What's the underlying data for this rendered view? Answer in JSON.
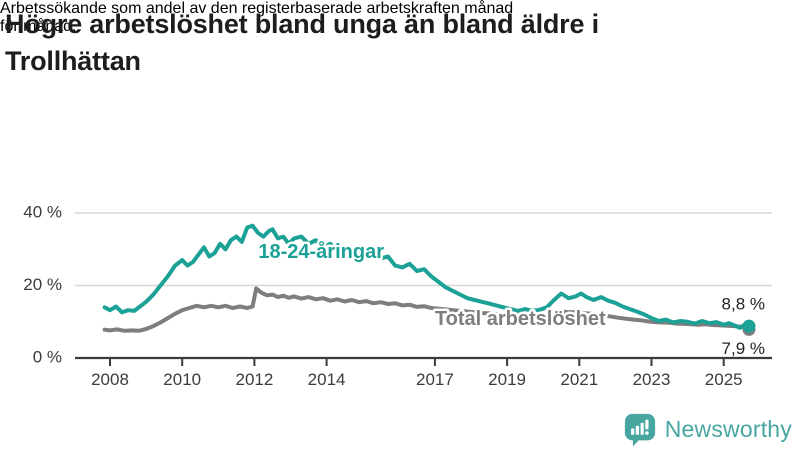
{
  "header": {
    "title_lines": [
      "Högre arbetslöshet bland unga än bland äldre i",
      "Trollhättan"
    ],
    "subtitle_lines": [
      "Arbetssökande som andel av den registerbaserade arbetskraften månad",
      "för månad."
    ]
  },
  "footer": {
    "brand": "Newsworthy",
    "logo_icon": "bar-chart-speech-bubble-icon"
  },
  "colors": {
    "young_line": "#1ba196",
    "total_line": "#7e7e7e",
    "grid": "#d7d7d7",
    "axis": "#3b3b3b",
    "brand_teal": "#47a6a0",
    "title_text": "#1d1d1b"
  },
  "chart_data": {
    "type": "line",
    "title": "Högre arbetslöshet bland unga än bland äldre i Trollhättan",
    "subtitle": "Arbetssökande som andel av den registerbaserade arbetskraften månad för månad.",
    "unit": "%",
    "xlim": [
      2007.85,
      2025.8
    ],
    "ylim": [
      0,
      40
    ],
    "grid": true,
    "legend_position": "inline-labels",
    "yticks": [
      {
        "value": 0,
        "label": "0 %"
      },
      {
        "value": 20,
        "label": "20 %"
      },
      {
        "value": 40,
        "label": "40 %"
      }
    ],
    "xticks": [
      {
        "value": 2008,
        "label": "2008"
      },
      {
        "value": 2010,
        "label": "2010"
      },
      {
        "value": 2012,
        "label": "2012"
      },
      {
        "value": 2014,
        "label": "2014"
      },
      {
        "value": 2017,
        "label": "2017"
      },
      {
        "value": 2019,
        "label": "2019"
      },
      {
        "value": 2021,
        "label": "2021"
      },
      {
        "value": 2023,
        "label": "2023"
      },
      {
        "value": 2025,
        "label": "2025"
      }
    ],
    "series": [
      {
        "name": "Total arbetslöshet",
        "color": "#7e7e7e",
        "inline_label": {
          "text": "Total arbetslöshet",
          "year": 2017.0,
          "pct": 10.5,
          "anchor": "start"
        },
        "end_value": 7.9,
        "end_label": "7,9 %",
        "end_label_position": "below",
        "points": [
          [
            2007.85,
            7.8
          ],
          [
            2008.0,
            7.6
          ],
          [
            2008.2,
            7.9
          ],
          [
            2008.4,
            7.5
          ],
          [
            2008.6,
            7.6
          ],
          [
            2008.8,
            7.5
          ],
          [
            2009.0,
            8.0
          ],
          [
            2009.2,
            8.8
          ],
          [
            2009.4,
            9.8
          ],
          [
            2009.6,
            11.0
          ],
          [
            2009.8,
            12.2
          ],
          [
            2010.0,
            13.2
          ],
          [
            2010.2,
            13.8
          ],
          [
            2010.4,
            14.4
          ],
          [
            2010.6,
            14.0
          ],
          [
            2010.8,
            14.4
          ],
          [
            2011.0,
            14.0
          ],
          [
            2011.2,
            14.4
          ],
          [
            2011.4,
            13.8
          ],
          [
            2011.6,
            14.2
          ],
          [
            2011.8,
            13.8
          ],
          [
            2011.95,
            14.2
          ],
          [
            2012.05,
            19.2
          ],
          [
            2012.2,
            18.0
          ],
          [
            2012.35,
            17.3
          ],
          [
            2012.5,
            17.5
          ],
          [
            2012.65,
            16.8
          ],
          [
            2012.8,
            17.2
          ],
          [
            2012.95,
            16.6
          ],
          [
            2013.1,
            17.0
          ],
          [
            2013.3,
            16.4
          ],
          [
            2013.5,
            16.8
          ],
          [
            2013.7,
            16.2
          ],
          [
            2013.9,
            16.5
          ],
          [
            2014.1,
            15.8
          ],
          [
            2014.3,
            16.2
          ],
          [
            2014.5,
            15.6
          ],
          [
            2014.7,
            16.0
          ],
          [
            2014.9,
            15.4
          ],
          [
            2015.1,
            15.7
          ],
          [
            2015.3,
            15.1
          ],
          [
            2015.5,
            15.4
          ],
          [
            2015.7,
            14.9
          ],
          [
            2015.9,
            15.1
          ],
          [
            2016.1,
            14.5
          ],
          [
            2016.3,
            14.7
          ],
          [
            2016.5,
            14.1
          ],
          [
            2016.7,
            14.3
          ],
          [
            2016.9,
            13.8
          ],
          [
            2017.1,
            13.6
          ],
          [
            2017.3,
            13.4
          ],
          [
            2017.5,
            13.2
          ],
          [
            2017.7,
            13.0
          ],
          [
            2017.9,
            12.8
          ],
          [
            2018.1,
            12.6
          ],
          [
            2018.3,
            12.4
          ],
          [
            2018.5,
            12.3
          ],
          [
            2018.7,
            12.1
          ],
          [
            2018.9,
            12.0
          ],
          [
            2019.1,
            11.9
          ],
          [
            2019.3,
            11.8
          ],
          [
            2019.5,
            11.9
          ],
          [
            2019.7,
            11.7
          ],
          [
            2019.9,
            11.8
          ],
          [
            2020.1,
            12.0
          ],
          [
            2020.3,
            12.6
          ],
          [
            2020.5,
            12.9
          ],
          [
            2020.7,
            12.6
          ],
          [
            2020.9,
            12.7
          ],
          [
            2021.1,
            12.4
          ],
          [
            2021.3,
            12.2
          ],
          [
            2021.5,
            12.0
          ],
          [
            2021.7,
            11.7
          ],
          [
            2021.9,
            11.4
          ],
          [
            2022.1,
            11.1
          ],
          [
            2022.3,
            10.8
          ],
          [
            2022.5,
            10.6
          ],
          [
            2022.7,
            10.4
          ],
          [
            2022.9,
            10.1
          ],
          [
            2023.1,
            9.9
          ],
          [
            2023.3,
            9.8
          ],
          [
            2023.5,
            9.7
          ],
          [
            2023.7,
            9.5
          ],
          [
            2023.9,
            9.4
          ],
          [
            2024.1,
            9.3
          ],
          [
            2024.3,
            9.2
          ],
          [
            2024.5,
            9.3
          ],
          [
            2024.7,
            9.1
          ],
          [
            2024.9,
            9.0
          ],
          [
            2025.1,
            8.9
          ],
          [
            2025.3,
            8.8
          ],
          [
            2025.5,
            8.6
          ],
          [
            2025.7,
            7.9
          ]
        ]
      },
      {
        "name": "18-24-åringar",
        "color": "#1ba196",
        "inline_label": {
          "text": "18-24-åringar",
          "year": 2013.85,
          "pct": 29.0,
          "anchor": "middle"
        },
        "end_value": 8.8,
        "end_label": "8,8 %",
        "end_label_position": "above",
        "points": [
          [
            2007.85,
            14.0
          ],
          [
            2008.0,
            13.2
          ],
          [
            2008.17,
            14.2
          ],
          [
            2008.33,
            12.6
          ],
          [
            2008.5,
            13.2
          ],
          [
            2008.67,
            13.0
          ],
          [
            2008.83,
            14.2
          ],
          [
            2009.0,
            15.5
          ],
          [
            2009.2,
            17.5
          ],
          [
            2009.4,
            20.0
          ],
          [
            2009.6,
            22.5
          ],
          [
            2009.8,
            25.5
          ],
          [
            2010.0,
            27.0
          ],
          [
            2010.15,
            25.5
          ],
          [
            2010.3,
            26.5
          ],
          [
            2010.45,
            28.5
          ],
          [
            2010.6,
            30.5
          ],
          [
            2010.75,
            28.0
          ],
          [
            2010.9,
            29.0
          ],
          [
            2011.05,
            31.5
          ],
          [
            2011.2,
            30.0
          ],
          [
            2011.35,
            32.5
          ],
          [
            2011.5,
            33.5
          ],
          [
            2011.65,
            32.0
          ],
          [
            2011.8,
            36.0
          ],
          [
            2011.95,
            36.5
          ],
          [
            2012.1,
            34.5
          ],
          [
            2012.25,
            33.5
          ],
          [
            2012.4,
            35.0
          ],
          [
            2012.5,
            35.5
          ],
          [
            2012.65,
            33.0
          ],
          [
            2012.8,
            33.5
          ],
          [
            2012.95,
            31.5
          ],
          [
            2013.1,
            33.0
          ],
          [
            2013.3,
            33.5
          ],
          [
            2013.5,
            31.5
          ],
          [
            2013.7,
            32.5
          ],
          [
            2013.9,
            30.5
          ],
          [
            2014.1,
            31.5
          ],
          [
            2014.3,
            29.5
          ],
          [
            2014.5,
            30.0
          ],
          [
            2014.7,
            28.5
          ],
          [
            2014.9,
            29.5
          ],
          [
            2015.1,
            28.0
          ],
          [
            2015.3,
            29.0
          ],
          [
            2015.5,
            27.5
          ],
          [
            2015.7,
            28.0
          ],
          [
            2015.9,
            25.5
          ],
          [
            2016.1,
            25.0
          ],
          [
            2016.3,
            26.0
          ],
          [
            2016.5,
            24.0
          ],
          [
            2016.7,
            24.5
          ],
          [
            2016.9,
            22.5
          ],
          [
            2017.1,
            21.0
          ],
          [
            2017.3,
            19.5
          ],
          [
            2017.5,
            18.5
          ],
          [
            2017.7,
            17.5
          ],
          [
            2017.9,
            16.5
          ],
          [
            2018.1,
            16.0
          ],
          [
            2018.3,
            15.5
          ],
          [
            2018.5,
            15.0
          ],
          [
            2018.7,
            14.5
          ],
          [
            2018.9,
            14.0
          ],
          [
            2019.1,
            13.5
          ],
          [
            2019.3,
            13.0
          ],
          [
            2019.5,
            13.5
          ],
          [
            2019.7,
            13.0
          ],
          [
            2019.9,
            13.3
          ],
          [
            2020.1,
            14.0
          ],
          [
            2020.3,
            16.0
          ],
          [
            2020.5,
            17.8
          ],
          [
            2020.7,
            16.5
          ],
          [
            2020.9,
            17.0
          ],
          [
            2021.05,
            17.8
          ],
          [
            2021.2,
            16.8
          ],
          [
            2021.4,
            16.0
          ],
          [
            2021.6,
            16.8
          ],
          [
            2021.8,
            15.8
          ],
          [
            2022.0,
            15.2
          ],
          [
            2022.2,
            14.2
          ],
          [
            2022.4,
            13.5
          ],
          [
            2022.6,
            12.8
          ],
          [
            2022.8,
            12.0
          ],
          [
            2023.0,
            11.0
          ],
          [
            2023.2,
            10.2
          ],
          [
            2023.4,
            10.6
          ],
          [
            2023.6,
            9.8
          ],
          [
            2023.8,
            10.2
          ],
          [
            2024.0,
            10.0
          ],
          [
            2024.2,
            9.5
          ],
          [
            2024.4,
            10.2
          ],
          [
            2024.6,
            9.6
          ],
          [
            2024.8,
            9.9
          ],
          [
            2025.0,
            9.2
          ],
          [
            2025.15,
            9.6
          ],
          [
            2025.3,
            9.0
          ],
          [
            2025.45,
            8.3
          ],
          [
            2025.6,
            9.3
          ],
          [
            2025.7,
            8.8
          ]
        ]
      }
    ]
  }
}
